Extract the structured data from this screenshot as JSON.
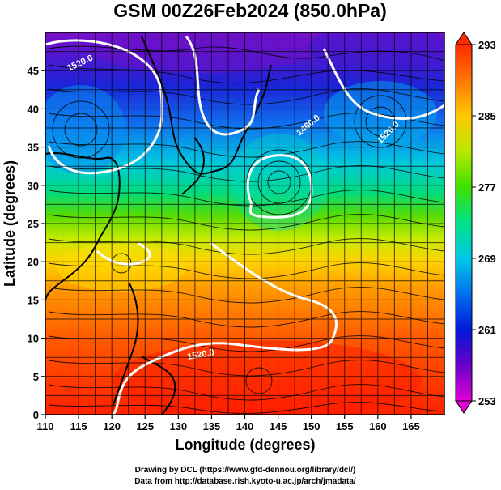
{
  "title": "GSM 00Z26Feb2024 (850.0hPa)",
  "credits": {
    "line1": "Drawing by DCL (https://www.gfd-dennou.org/library/dcl/)",
    "line2": "Data from http://database.rish.kyoto-u.ac.jp/arch/jmadata/"
  },
  "map": {
    "xlabel": "Longitude (degrees)",
    "ylabel": "Latitude  (degrees)",
    "xlim": [
      110,
      170
    ],
    "ylim": [
      0,
      50
    ],
    "xticks": [
      "110",
      "115",
      "120",
      "125",
      "130",
      "135",
      "140",
      "145",
      "150",
      "155",
      "160",
      "165"
    ],
    "yticks": [
      "0",
      "5",
      "10",
      "15",
      "20",
      "25",
      "30",
      "35",
      "40",
      "45"
    ],
    "contour_labels": [
      "1520.0",
      "1460.0",
      "1520.0",
      "1520.0"
    ]
  },
  "colorbar": {
    "ticks": [
      "293",
      "285",
      "277",
      "269",
      "261",
      "253"
    ],
    "gradient": [
      "#ff2a00",
      "#ff7700",
      "#ffc800",
      "#b8e800",
      "#3ee000",
      "#00e28a",
      "#00c8e6",
      "#0070f0",
      "#0018d8",
      "#6a00c8",
      "#e000d6"
    ]
  }
}
